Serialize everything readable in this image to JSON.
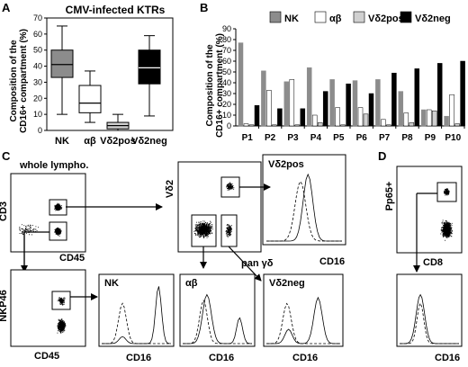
{
  "panels": {
    "A": {
      "letter": "A",
      "title": "CMV-infected KTRs",
      "ylabel_line1": "Composition of the",
      "ylabel_line2": "CD16+ compartment (%)",
      "chart_data": {
        "type": "box",
        "title": "CMV-infected KTRs",
        "ylabel": "Composition of the CD16+ compartment (%)",
        "ylim": [
          0,
          70
        ],
        "yticks": [
          0,
          10,
          20,
          30,
          40,
          50,
          60,
          70
        ],
        "categories": [
          "NK",
          "αβ",
          "Vδ2pos",
          "Vδ2neg"
        ],
        "boxes": [
          {
            "name": "NK",
            "min": 10,
            "q1": 33,
            "median": 41,
            "q3": 50,
            "max": 65,
            "color": "#8c8c8c"
          },
          {
            "name": "αβ",
            "min": 5,
            "q1": 11,
            "median": 17,
            "q3": 28,
            "max": 37,
            "color": "#ffffff"
          },
          {
            "name": "Vδ2pos",
            "min": 0,
            "q1": 1,
            "median": 3,
            "q3": 5,
            "max": 10,
            "color": "#d0d0d0"
          },
          {
            "name": "Vδ2neg",
            "min": 9,
            "q1": 29,
            "median": 39,
            "q3": 50,
            "max": 59,
            "color": "#000000"
          }
        ]
      }
    },
    "B": {
      "letter": "B",
      "ylabel_line1": "Composition of the",
      "ylabel_line2": "CD16+ compartment (%)",
      "chart_data": {
        "type": "bar",
        "ylim": [
          0,
          90
        ],
        "yticks": [
          0,
          10,
          20,
          30,
          40,
          50,
          60,
          70,
          80,
          90
        ],
        "categories": [
          "P1",
          "P2",
          "P3",
          "P4",
          "P5",
          "P6",
          "P7",
          "P8",
          "P9",
          "P10"
        ],
        "legend_position": "top",
        "series": [
          {
            "name": "NK",
            "color": "#8c8c8c",
            "values": [
              77,
              51,
              41,
              54,
              43,
              42,
              43,
              32,
              15,
              9
            ]
          },
          {
            "name": "αβ",
            "color": "#ffffff",
            "values": [
              2,
              33,
              43,
              10,
              17,
              17,
              6,
              12,
              15,
              29
            ]
          },
          {
            "name": "Vδ2pos",
            "color": "#d0d0d0",
            "values": [
              1,
              1,
              1,
              3,
              1,
              11,
              1,
              3,
              14,
              2
            ]
          },
          {
            "name": "Vδ2neg",
            "color": "#000000",
            "values": [
              19,
              16,
              16,
              32,
              39,
              30,
              49,
              53,
              58,
              60
            ]
          }
        ]
      }
    },
    "C": {
      "letter": "C",
      "whole_lympho": "whole lympho.",
      "cd3": "CD3",
      "cd45_a": "CD45",
      "vd2": "Vδ2",
      "pan_gd": "pan γδ",
      "nkp46": "NKP46",
      "cd45_b": "CD45",
      "hist_vd2pos": "Vδ2pos",
      "hist_nk": "NK",
      "hist_ab": "αβ",
      "hist_vd2neg": "Vδ2neg",
      "cd16": "CD16"
    },
    "D": {
      "letter": "D",
      "pp65": "Pp65+",
      "cd8": "CD8",
      "cd16": "CD16"
    }
  }
}
